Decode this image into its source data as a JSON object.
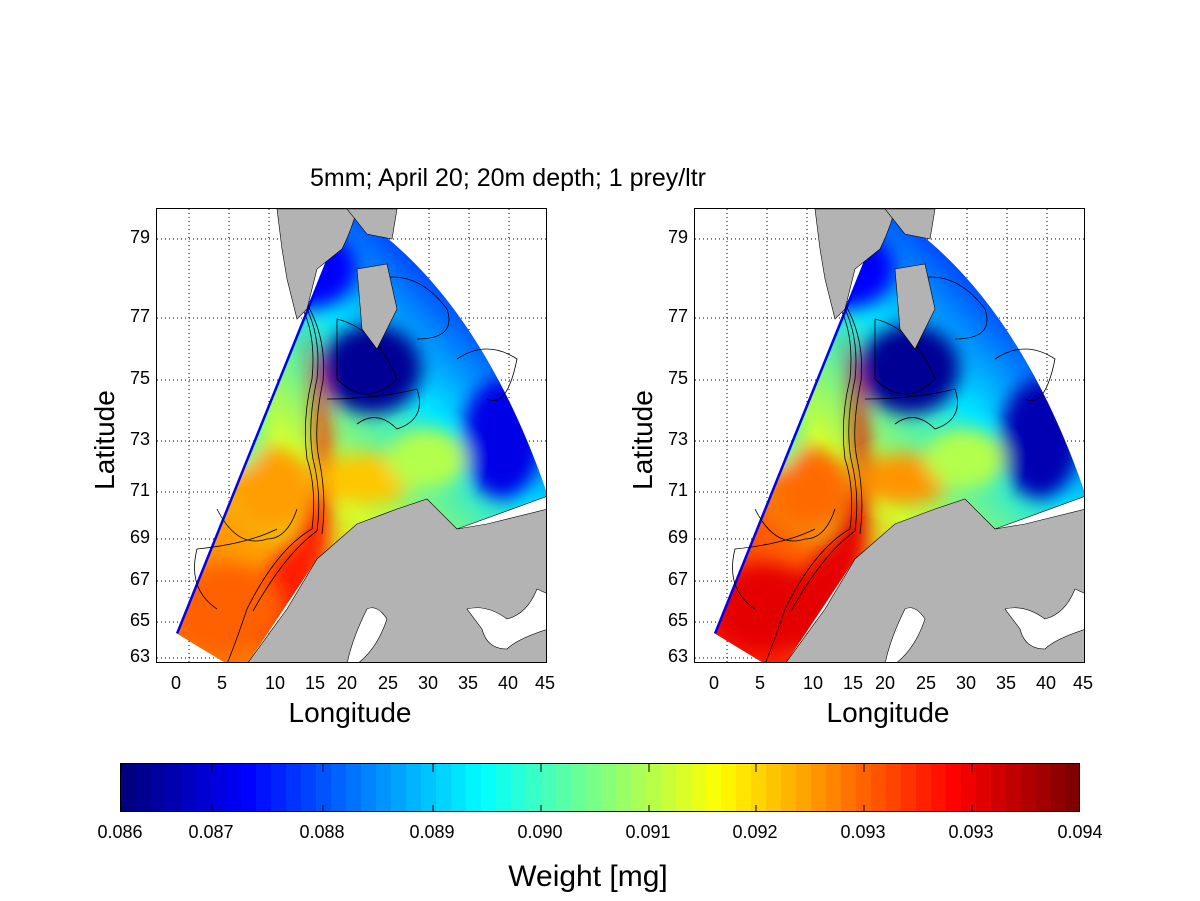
{
  "figure": {
    "title": "5mm; April 20; 20m depth; 1 prey/ltr"
  },
  "chart_data": {
    "type": "heatmap",
    "title": "5mm; April 20; 20m depth; 1 prey/ltr",
    "panels": [
      {
        "name": "left",
        "xlabel": "Longitude",
        "ylabel": "Latitude",
        "xticks": [
          "0",
          "5",
          "10",
          "15",
          "20",
          "25",
          "30",
          "35",
          "40",
          "45"
        ],
        "yticks": [
          "79",
          "77",
          "75",
          "73",
          "71",
          "69",
          "67",
          "65",
          "63"
        ],
        "xlim": [
          -2,
          45
        ],
        "ylim": [
          63,
          80
        ],
        "grid": true,
        "intensity": 0.0
      },
      {
        "name": "right",
        "xlabel": "Longitude",
        "ylabel": "Latitude",
        "xticks": [
          "0",
          "5",
          "10",
          "15",
          "20",
          "25",
          "30",
          "35",
          "40",
          "45"
        ],
        "yticks": [
          "79",
          "77",
          "75",
          "73",
          "71",
          "69",
          "67",
          "65",
          "63"
        ],
        "xlim": [
          -2,
          45
        ],
        "ylim": [
          63,
          80
        ],
        "grid": true,
        "intensity": 1.0
      }
    ],
    "colorbar": {
      "label": "Weight [mg]",
      "colormap": "jet",
      "range": [
        0.086,
        0.094
      ],
      "ticks": [
        "0.086",
        "0.087",
        "0.088",
        "0.089",
        "0.090",
        "0.091",
        "0.092",
        "0.093",
        "0.093",
        "0.094"
      ],
      "placement": "bottom"
    }
  },
  "colors": {
    "land": "#b3b3b3",
    "contour": "#000000"
  }
}
